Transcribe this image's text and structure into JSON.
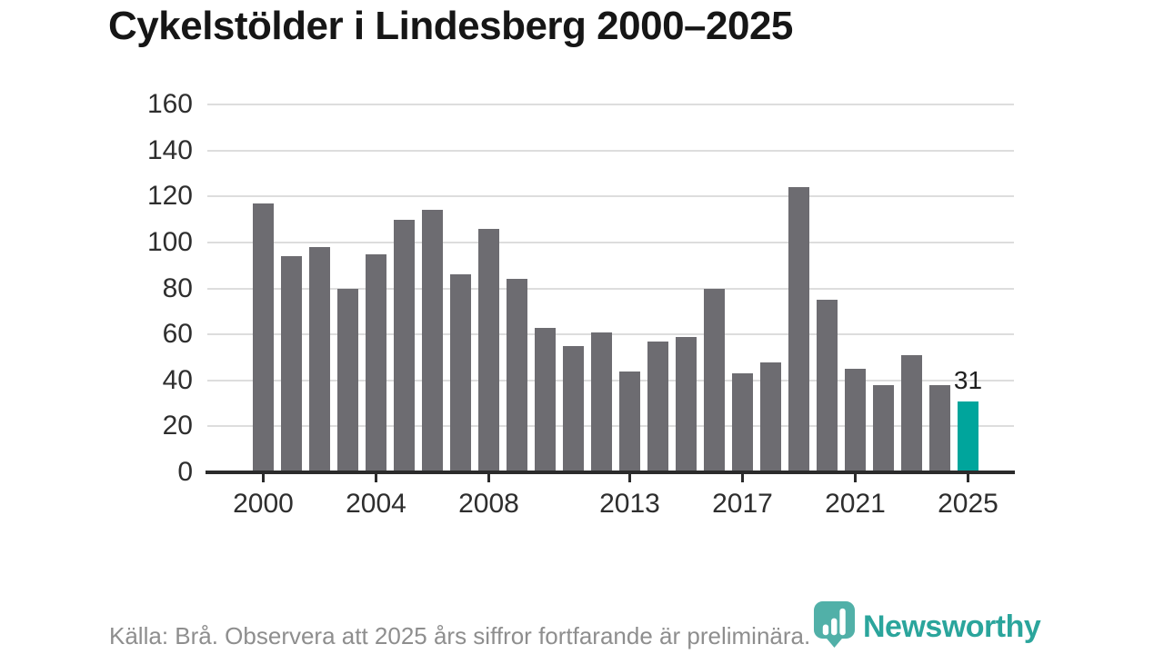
{
  "title": "Cykelstölder i Lindesberg 2000–2025",
  "footer": {
    "source_note": "Källa: Brå. Observera att 2025 års siffror fortfarande är preliminära."
  },
  "branding": {
    "logo_text": "Newsworthy",
    "logo_icon": "newsworthy-speech-bubble-bar-chart-icon",
    "brand_color": "#2ba59c",
    "icon_color": "#3aa69d"
  },
  "colors": {
    "bar_default": "#6d6c71",
    "bar_highlight": "#00a59c",
    "grid": "#dddddd",
    "axis": "#2b2b2b",
    "tick_label": "#2e2e2e",
    "title": "#161616",
    "footer_text": "#8e8e8e",
    "value_label": "#1f1f1f",
    "background": "#ffffff"
  },
  "chart_data": {
    "type": "bar",
    "title": "Cykelstölder i Lindesberg 2000–2025",
    "x": [
      2000,
      2001,
      2002,
      2003,
      2004,
      2005,
      2006,
      2007,
      2008,
      2009,
      2010,
      2011,
      2012,
      2013,
      2014,
      2015,
      2016,
      2017,
      2018,
      2019,
      2020,
      2021,
      2022,
      2023,
      2024,
      2025
    ],
    "values": [
      117,
      94,
      98,
      80,
      95,
      110,
      114,
      86,
      106,
      84,
      63,
      55,
      61,
      44,
      57,
      59,
      80,
      43,
      48,
      124,
      75,
      45,
      38,
      51,
      38,
      31
    ],
    "highlight_year": 2025,
    "value_label": {
      "year": 2025,
      "text": "31"
    },
    "xlabel": "",
    "ylabel": "",
    "ylim": [
      0,
      160
    ],
    "yticks": [
      0,
      20,
      40,
      60,
      80,
      100,
      120,
      140,
      160
    ],
    "xticks": [
      2000,
      2004,
      2008,
      2013,
      2017,
      2021,
      2025
    ],
    "grid": "horizontal",
    "legend": "none"
  }
}
